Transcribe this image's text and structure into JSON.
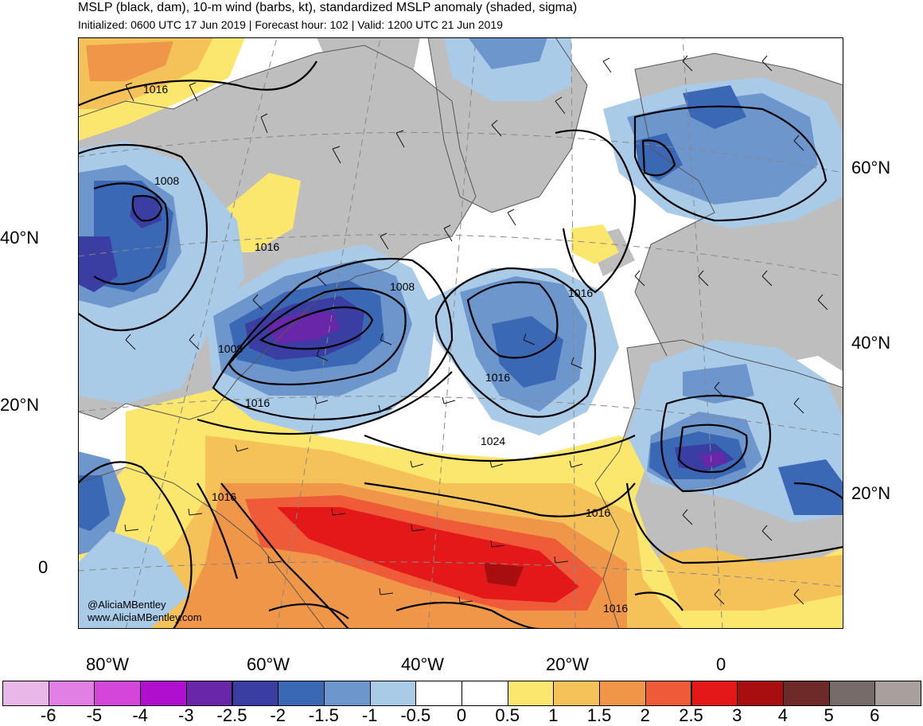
{
  "header": {
    "title": "MSLP (black, dam), 10-m wind (barbs, kt), standardized MSLP anomaly (shaded, sigma)",
    "subtitle": "Initialized: 0600 UTC 17 Jun 2019 | Forecast hour: 102 | Valid: 1200 UTC 21 Jun 2019"
  },
  "credit": {
    "handle": "@AliciaMBentley",
    "website": "www.AliciaMBentley.com"
  },
  "axes": {
    "left_lat": [
      "40°N",
      "20°N",
      "0"
    ],
    "right_lat": [
      "60°N",
      "40°N",
      "20°N"
    ],
    "bottom_lon": [
      "80°W",
      "60°W",
      "40°W",
      "20°W",
      "0"
    ]
  },
  "contours": {
    "isobar_labels": [
      "1016",
      "1008",
      "1016",
      "1008",
      "1008",
      "1016",
      "1016",
      "1016",
      "1024",
      "1016",
      "1016",
      "1016"
    ]
  },
  "colorbar": {
    "labels": [
      "-6",
      "-5",
      "-4",
      "-3",
      "-2.5",
      "-2",
      "-1.5",
      "-1",
      "-0.5",
      "0",
      "0.5",
      "1",
      "1.5",
      "2",
      "2.5",
      "3",
      "4",
      "5",
      "6"
    ],
    "colors": [
      "#e9b7e8",
      "#e27fe4",
      "#d246d9",
      "#b10fcf",
      "#6727a8",
      "#3a3da2",
      "#3b68b4",
      "#6c96cc",
      "#a9cbe8",
      "#ffffff",
      "#ffffff",
      "#fbe66e",
      "#f4c258",
      "#f09648",
      "#ef5a38",
      "#e41818",
      "#a80e10",
      "#6e2a28",
      "#766b68",
      "#a8a09c"
    ]
  },
  "colors": {
    "land": "#bebebe",
    "ocean": "#ffffff"
  }
}
